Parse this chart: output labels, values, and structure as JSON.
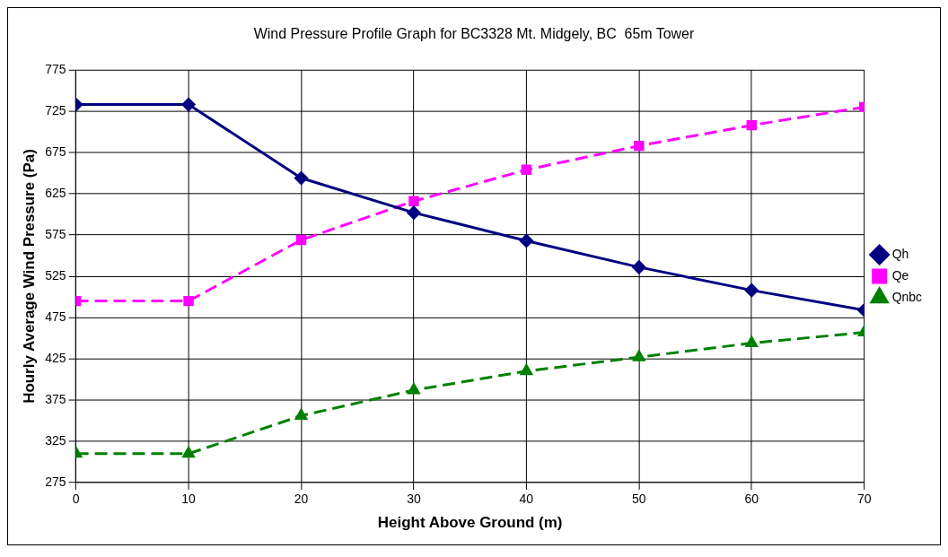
{
  "chart_data": {
    "type": "line",
    "title": "Wind Pressure Profile Graph for BC3328 Mt. Midgely, BC  65m Tower",
    "xlabel": "Height Above Ground (m)",
    "ylabel": "Hourly Average Wind Pressure (Pa)",
    "x": [
      0,
      10,
      20,
      30,
      40,
      50,
      60,
      70
    ],
    "xlim": [
      0,
      70
    ],
    "xticks": [
      0,
      10,
      20,
      30,
      40,
      50,
      60,
      70
    ],
    "ylim": [
      275,
      775
    ],
    "yticks": [
      275,
      325,
      375,
      425,
      475,
      525,
      575,
      625,
      675,
      725,
      775
    ],
    "grid": true,
    "legend": "right",
    "series": [
      {
        "name": "Qh",
        "color": "#000080",
        "marker": "diamond",
        "line_style": "solid",
        "values": [
          733,
          733,
          644,
          602,
          568,
          536,
          508,
          484
        ]
      },
      {
        "name": "Qe",
        "color": "#ff00ff",
        "marker": "square",
        "line_style": "dashed",
        "values": [
          495,
          495,
          569,
          616,
          654,
          683,
          708,
          730
        ]
      },
      {
        "name": "Qnbc",
        "color": "#008000",
        "marker": "triangle",
        "line_style": "dashed",
        "values": [
          310,
          310,
          356,
          387,
          410,
          427,
          444,
          457
        ]
      }
    ]
  }
}
